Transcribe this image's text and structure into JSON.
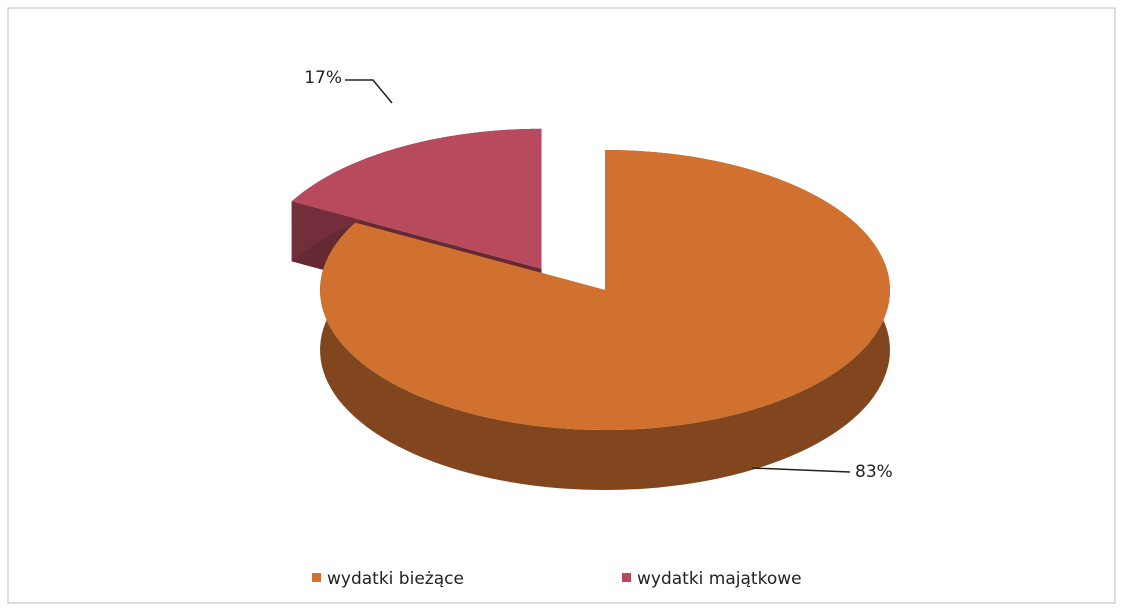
{
  "chart_data": {
    "type": "pie",
    "categories": [
      "wydatki bieżące",
      "wydatki majątkowe"
    ],
    "values": [
      83,
      17
    ],
    "value_labels": [
      "83%",
      "17%"
    ],
    "colors": [
      "#d0712f",
      "#b84a5d"
    ],
    "legend": "bottom"
  }
}
